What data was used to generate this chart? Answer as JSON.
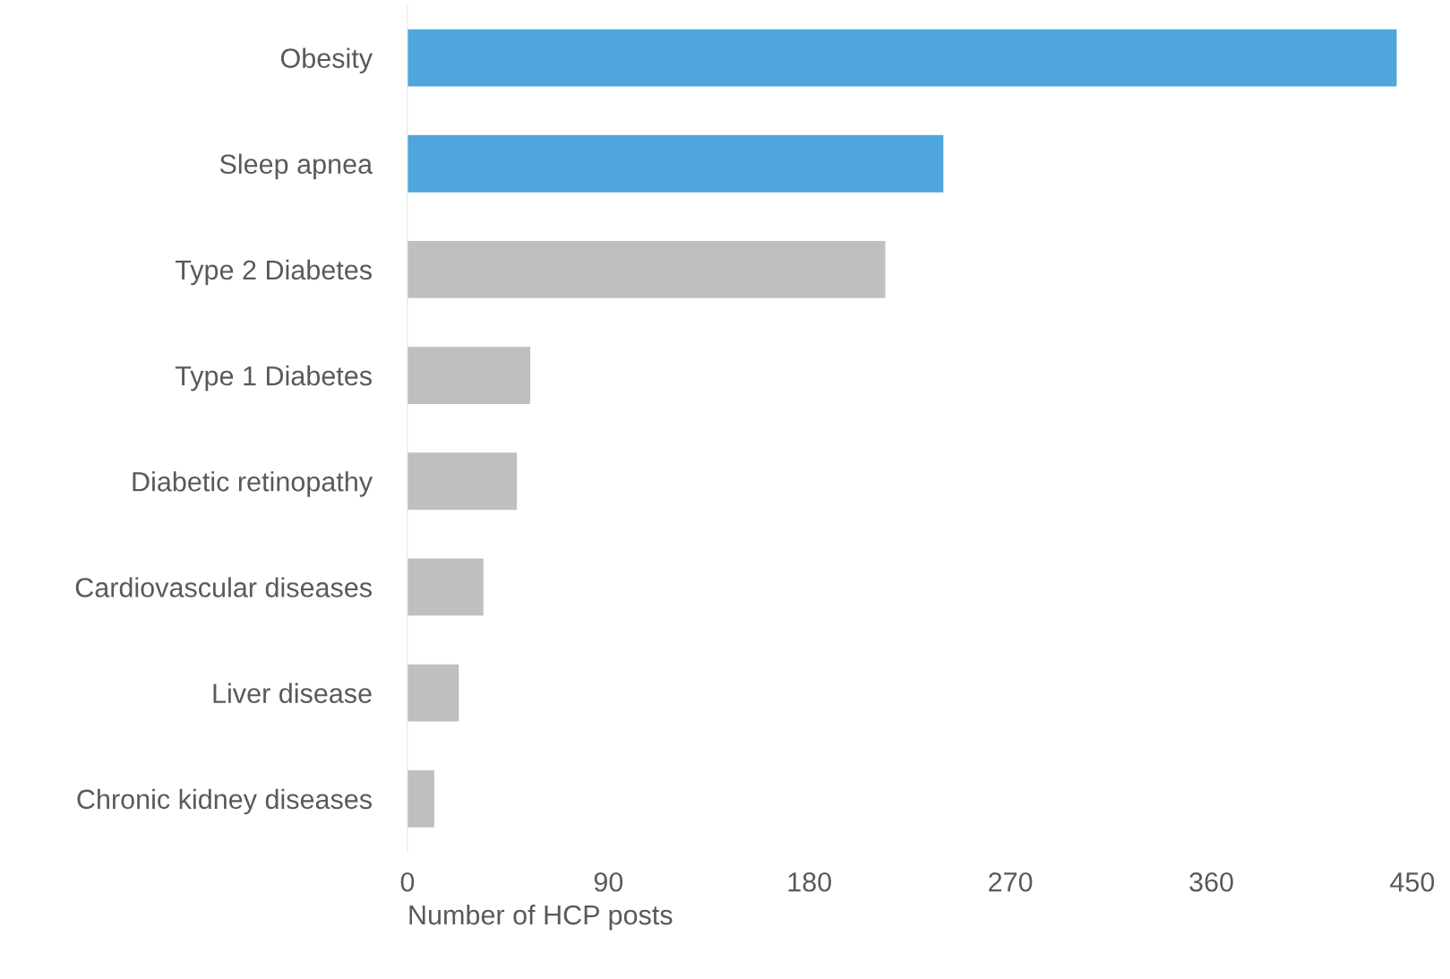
{
  "chart_data": {
    "type": "bar",
    "orientation": "horizontal",
    "xlabel": "Number of HCP posts",
    "categories": [
      "Obesity",
      "Sleep apnea",
      "Type 2 Diabetes",
      "Type 1 Diabetes",
      "Diabetic retinopathy",
      "Cardiovascular diseases",
      "Liver disease",
      "Chronic kidney diseases"
    ],
    "values": [
      443,
      240,
      214,
      55,
      49,
      34,
      23,
      12
    ],
    "colors": [
      "#4ea6dc",
      "#4ea6dc",
      "#bfbfbf",
      "#bfbfbf",
      "#bfbfbf",
      "#bfbfbf",
      "#bfbfbf",
      "#bfbfbf"
    ],
    "xlim": [
      0,
      450
    ],
    "xticks": [
      0,
      90,
      180,
      270,
      360,
      450
    ],
    "grid": false
  }
}
